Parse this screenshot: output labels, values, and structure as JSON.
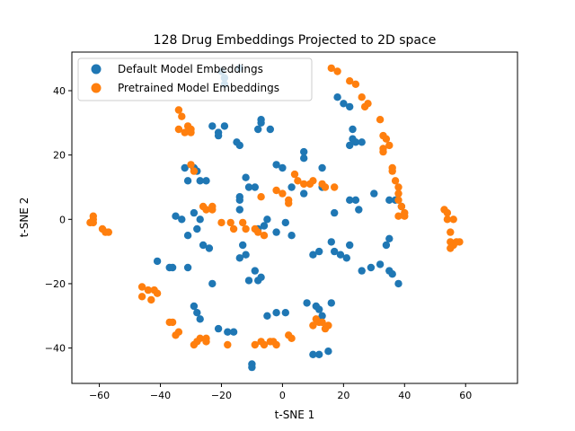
{
  "chart_data": {
    "type": "scatter",
    "title": "128 Drug Embeddings Projected to 2D space",
    "xlabel": "t-SNE 1",
    "ylabel": "t-SNE 2",
    "xlim": [
      -69,
      77
    ],
    "ylim": [
      -51,
      52
    ],
    "xticks": [
      -60,
      -40,
      -20,
      0,
      20,
      40,
      60
    ],
    "yticks": [
      -40,
      -20,
      0,
      20,
      40
    ],
    "grid": false,
    "legend_position": "upper-left",
    "series": [
      {
        "name": "Default Model Embeddings",
        "color": "#1f77b4",
        "points": [
          [
            -20,
            46
          ],
          [
            -19,
            44
          ],
          [
            -19,
            42
          ],
          [
            -14,
            47
          ],
          [
            -23,
            29
          ],
          [
            -21,
            27
          ],
          [
            -21,
            26
          ],
          [
            -19,
            29
          ],
          [
            -15,
            24
          ],
          [
            -14,
            23
          ],
          [
            -7,
            31
          ],
          [
            -7,
            30
          ],
          [
            -8,
            28
          ],
          [
            -4,
            28
          ],
          [
            -32,
            16
          ],
          [
            -29,
            16
          ],
          [
            -28,
            15
          ],
          [
            -31,
            12
          ],
          [
            -27,
            12
          ],
          [
            -25,
            12
          ],
          [
            -12,
            13
          ],
          [
            -11,
            10
          ],
          [
            -9,
            10
          ],
          [
            -14,
            7
          ],
          [
            -14,
            6
          ],
          [
            -14,
            3
          ],
          [
            -2,
            17
          ],
          [
            0,
            16
          ],
          [
            7,
            21
          ],
          [
            7,
            19
          ],
          [
            13,
            16
          ],
          [
            3,
            10
          ],
          [
            7,
            8
          ],
          [
            13,
            10
          ],
          [
            18,
            38
          ],
          [
            20,
            36
          ],
          [
            22,
            35
          ],
          [
            23,
            28
          ],
          [
            23,
            25
          ],
          [
            24,
            24
          ],
          [
            26,
            24
          ],
          [
            22,
            23
          ],
          [
            -35,
            1
          ],
          [
            -33,
            0
          ],
          [
            -31,
            -5
          ],
          [
            -28,
            -3
          ],
          [
            -26,
            -8
          ],
          [
            -24,
            -9
          ],
          [
            -13,
            -8
          ],
          [
            -12,
            -11
          ],
          [
            -14,
            -12
          ],
          [
            -9,
            -16
          ],
          [
            -11,
            -19
          ],
          [
            -8,
            -19
          ],
          [
            -7,
            -18
          ],
          [
            -8,
            -3
          ],
          [
            -6,
            -2
          ],
          [
            -5,
            0
          ],
          [
            -2,
            -4
          ],
          [
            1,
            -1
          ],
          [
            3,
            -5
          ],
          [
            -41,
            -13
          ],
          [
            -37,
            -15
          ],
          [
            -36,
            -15
          ],
          [
            -31,
            -15
          ],
          [
            -23,
            -20
          ],
          [
            -29,
            -27
          ],
          [
            -28,
            -29
          ],
          [
            -27,
            -31
          ],
          [
            -21,
            -34
          ],
          [
            -18,
            -35
          ],
          [
            -16,
            -35
          ],
          [
            -5,
            -30
          ],
          [
            -2,
            -29
          ],
          [
            1,
            -29
          ],
          [
            8,
            -26
          ],
          [
            11,
            -27
          ],
          [
            12,
            -28
          ],
          [
            16,
            -26
          ],
          [
            13,
            -30
          ],
          [
            10,
            -11
          ],
          [
            12,
            -10
          ],
          [
            16,
            -7
          ],
          [
            17,
            -10
          ],
          [
            19,
            -11
          ],
          [
            21,
            -12
          ],
          [
            22,
            -8
          ],
          [
            17,
            2
          ],
          [
            22,
            6
          ],
          [
            24,
            6
          ],
          [
            25,
            3
          ],
          [
            30,
            8
          ],
          [
            35,
            6
          ],
          [
            37,
            6
          ],
          [
            39,
            4
          ],
          [
            26,
            -16
          ],
          [
            29,
            -15
          ],
          [
            32,
            -14
          ],
          [
            34,
            -8
          ],
          [
            35,
            -6
          ],
          [
            35,
            -16
          ],
          [
            36,
            -17
          ],
          [
            38,
            -20
          ],
          [
            10,
            -42
          ],
          [
            12,
            -42
          ],
          [
            15,
            -41
          ],
          [
            -10,
            -45
          ],
          [
            -10,
            -46
          ],
          [
            -29,
            2
          ],
          [
            -27,
            0
          ]
        ]
      },
      {
        "name": "Pretrained Model Embeddings",
        "color": "#ff7f0e",
        "points": [
          [
            16,
            47
          ],
          [
            18,
            46
          ],
          [
            22,
            43
          ],
          [
            24,
            42
          ],
          [
            26,
            38
          ],
          [
            28,
            36
          ],
          [
            27,
            35
          ],
          [
            32,
            31
          ],
          [
            33,
            26
          ],
          [
            34,
            25
          ],
          [
            35,
            23
          ],
          [
            33,
            22
          ],
          [
            33,
            21
          ],
          [
            -34,
            34
          ],
          [
            -33,
            32
          ],
          [
            -31,
            29
          ],
          [
            -34,
            28
          ],
          [
            -30,
            28
          ],
          [
            -32,
            27
          ],
          [
            -30,
            27
          ],
          [
            36,
            16
          ],
          [
            36,
            15
          ],
          [
            37,
            12
          ],
          [
            38,
            10
          ],
          [
            38,
            8
          ],
          [
            38,
            6
          ],
          [
            39,
            4
          ],
          [
            38,
            1
          ],
          [
            40,
            2
          ],
          [
            40,
            1
          ],
          [
            -30,
            17
          ],
          [
            -29,
            15
          ],
          [
            -26,
            4
          ],
          [
            -25,
            3
          ],
          [
            -23,
            4
          ],
          [
            -23,
            3
          ],
          [
            -20,
            -1
          ],
          [
            -17,
            -1
          ],
          [
            -16,
            -3
          ],
          [
            -13,
            -1
          ],
          [
            -12,
            -3
          ],
          [
            -9,
            -3
          ],
          [
            -8,
            -4
          ],
          [
            -6,
            -5
          ],
          [
            -7,
            7
          ],
          [
            -2,
            9
          ],
          [
            0,
            8
          ],
          [
            2,
            6
          ],
          [
            2,
            5
          ],
          [
            4,
            14
          ],
          [
            5,
            12
          ],
          [
            7,
            11
          ],
          [
            10,
            12
          ],
          [
            9,
            11
          ],
          [
            13,
            11
          ],
          [
            14,
            10
          ],
          [
            17,
            10
          ],
          [
            -62,
            1
          ],
          [
            -62,
            0
          ],
          [
            -63,
            -1
          ],
          [
            -62,
            -1
          ],
          [
            -59,
            -3
          ],
          [
            -58,
            -4
          ],
          [
            -57,
            -4
          ],
          [
            53,
            3
          ],
          [
            54,
            2
          ],
          [
            54,
            0
          ],
          [
            56,
            0
          ],
          [
            55,
            -4
          ],
          [
            55,
            -7
          ],
          [
            56,
            -8
          ],
          [
            55,
            -9
          ],
          [
            57,
            -7
          ],
          [
            58,
            -7
          ],
          [
            -46,
            -21
          ],
          [
            -46,
            -24
          ],
          [
            -44,
            -22
          ],
          [
            -42,
            -22
          ],
          [
            -41,
            -23
          ],
          [
            -43,
            -25
          ],
          [
            -37,
            -32
          ],
          [
            -36,
            -32
          ],
          [
            -35,
            -36
          ],
          [
            -34,
            -35
          ],
          [
            -29,
            -39
          ],
          [
            -28,
            -38
          ],
          [
            -27,
            -37
          ],
          [
            -25,
            -37
          ],
          [
            -25,
            -38
          ],
          [
            -18,
            -39
          ],
          [
            -9,
            -39
          ],
          [
            -7,
            -38
          ],
          [
            -6,
            -39
          ],
          [
            -4,
            -38
          ],
          [
            -3,
            -38
          ],
          [
            -2,
            -39
          ],
          [
            2,
            -36
          ],
          [
            3,
            -37
          ],
          [
            10,
            -33
          ],
          [
            11,
            -31
          ],
          [
            12,
            -32
          ],
          [
            13,
            -32
          ],
          [
            14,
            -34
          ],
          [
            15,
            -33
          ]
        ]
      }
    ]
  }
}
